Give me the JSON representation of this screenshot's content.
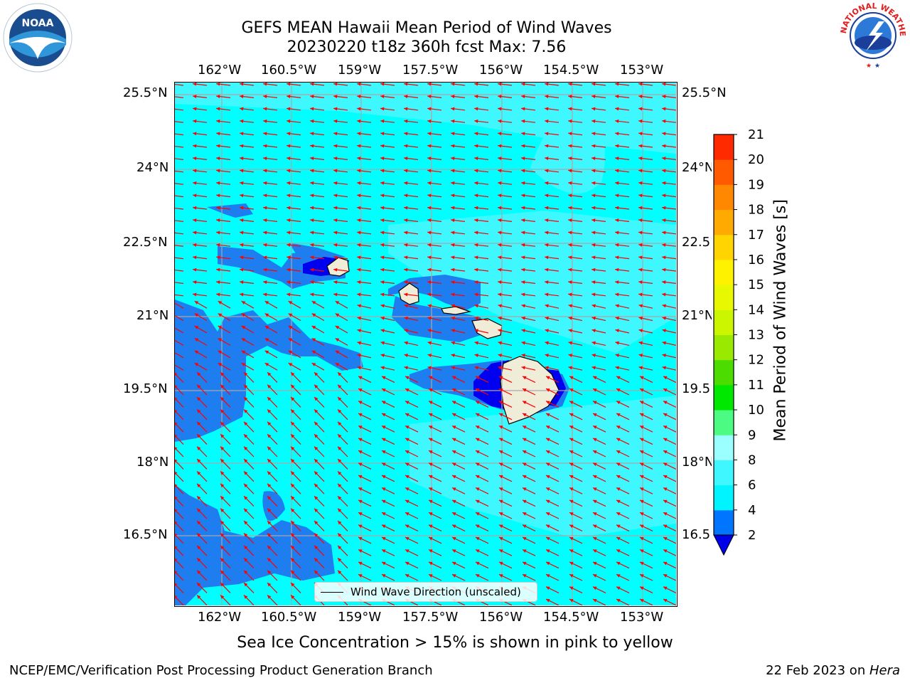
{
  "header": {
    "title_line1": "GEFS MEAN Hawaii Mean Period of Wind Waves",
    "title_line2": "20230220 t18z 360h fcst   Max: 7.56"
  },
  "map": {
    "lon_labels": [
      "162°W",
      "160.5°W",
      "159°W",
      "157.5°W",
      "156°W",
      "154.5°W",
      "153°W"
    ],
    "lat_labels": [
      "25.5°N",
      "24°N",
      "22.5°N",
      "21°N",
      "19.5°N",
      "18°N",
      "16.5°N"
    ],
    "legend_label": "Wind Wave Direction (unscaled)",
    "arrow_color": "#ff0000",
    "ocean_colors": {
      "period_2_4": "#1e7ef0",
      "period_4_6": "#00ffff",
      "period_6_8": "#3ff7ff",
      "period_lt2": "#0000f0",
      "land": "#efecd8"
    },
    "islands": [
      "Kauai",
      "Oahu",
      "Molokai",
      "Maui",
      "Hawaii"
    ]
  },
  "colorbar": {
    "ticks": [
      "2",
      "4",
      "6",
      "8",
      "9",
      "10",
      "11",
      "12",
      "13",
      "14",
      "15",
      "16",
      "17",
      "18",
      "19",
      "20",
      "21"
    ],
    "colors": [
      "#0075ff",
      "#00f4ff",
      "#3ff7ff",
      "#9bffff",
      "#4cfb82",
      "#00e800",
      "#4cdc00",
      "#99e900",
      "#ccf500",
      "#e8f800",
      "#fff200",
      "#ffd400",
      "#ffaa00",
      "#ff8800",
      "#ff5a00",
      "#ff2a00"
    ],
    "extend_color": "#0000e8",
    "label": "Mean Period of Wind Waves [s]"
  },
  "footer": {
    "ice_note": "Sea Ice Concentration > 15% is shown in pink to yellow",
    "left": "NCEP/EMC/Verification Post Processing Product Generation Branch",
    "right_date": "22 Feb 2023 on ",
    "right_host": "Hera"
  },
  "logos": {
    "noaa": "NOAA",
    "nws": "NATIONAL WEATHER SERVICE"
  }
}
